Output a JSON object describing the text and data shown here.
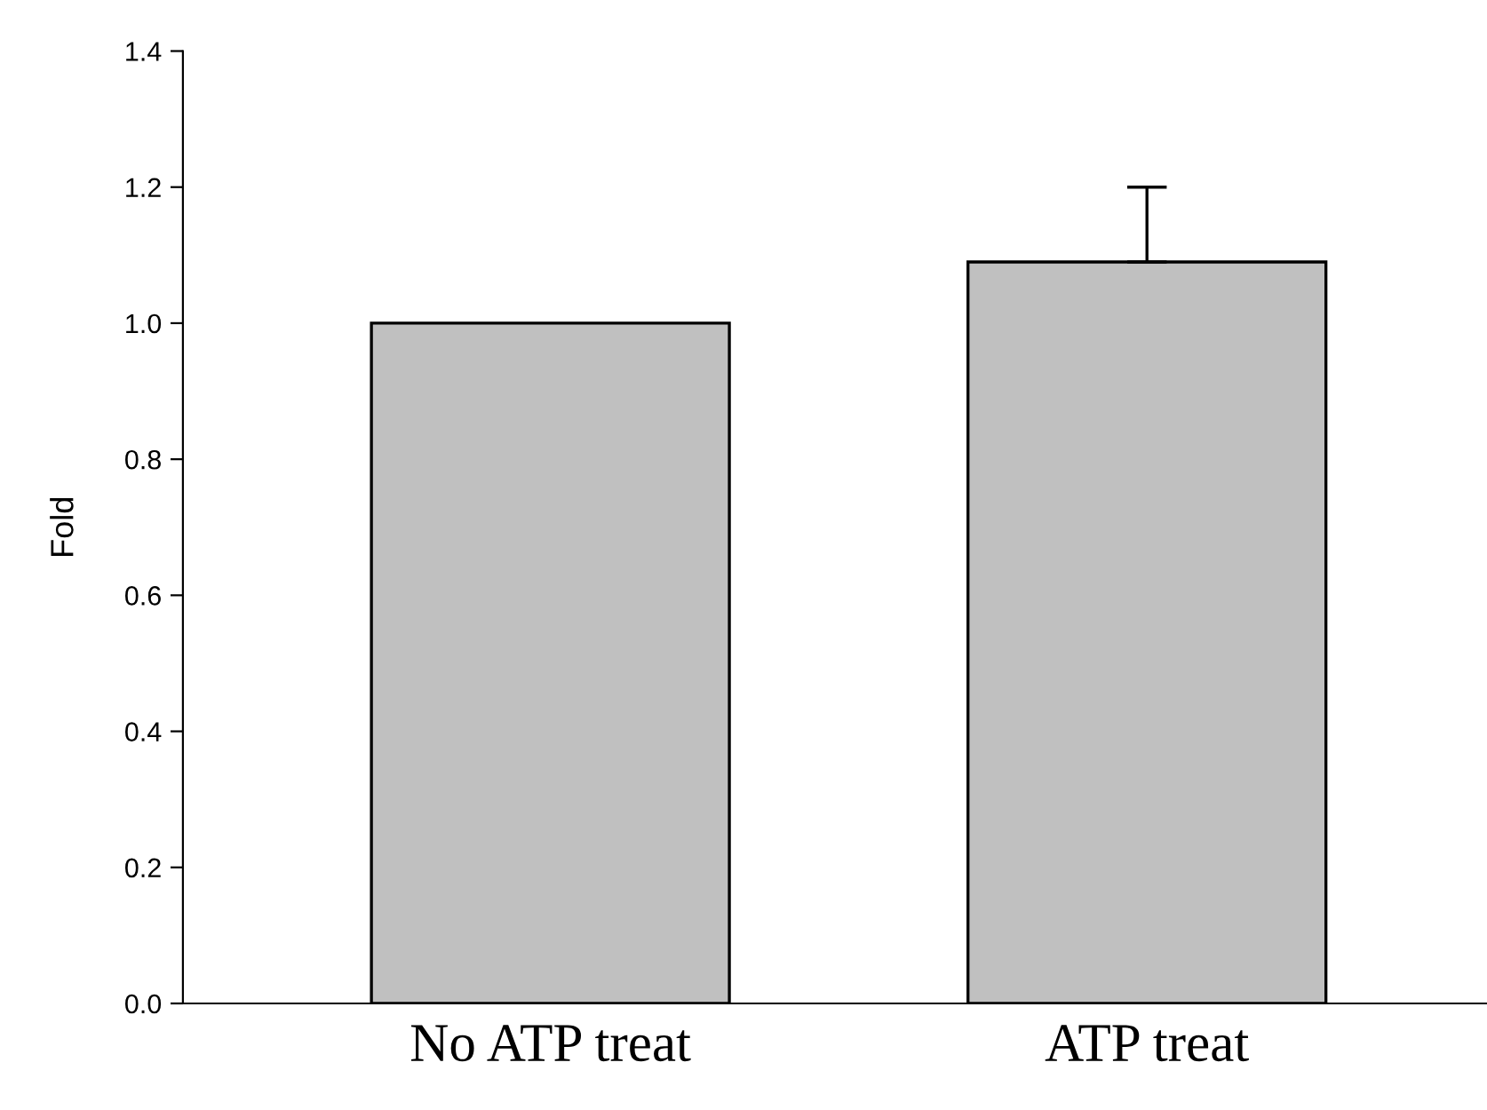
{
  "chart_data": {
    "type": "bar",
    "ylabel": "Fold",
    "categories": [
      "No ATP treat",
      "ATP treat"
    ],
    "values": [
      1.0,
      1.09
    ],
    "errors": [
      null,
      [
        1.09,
        1.2
      ]
    ],
    "color": "#c0c0c0",
    "ylim": [
      0,
      1.4
    ],
    "yticks": [
      "0.0",
      0.2,
      0.4,
      0.6,
      0.8,
      "1.0",
      1.2,
      1.4
    ],
    "grid": false,
    "legend": false
  }
}
